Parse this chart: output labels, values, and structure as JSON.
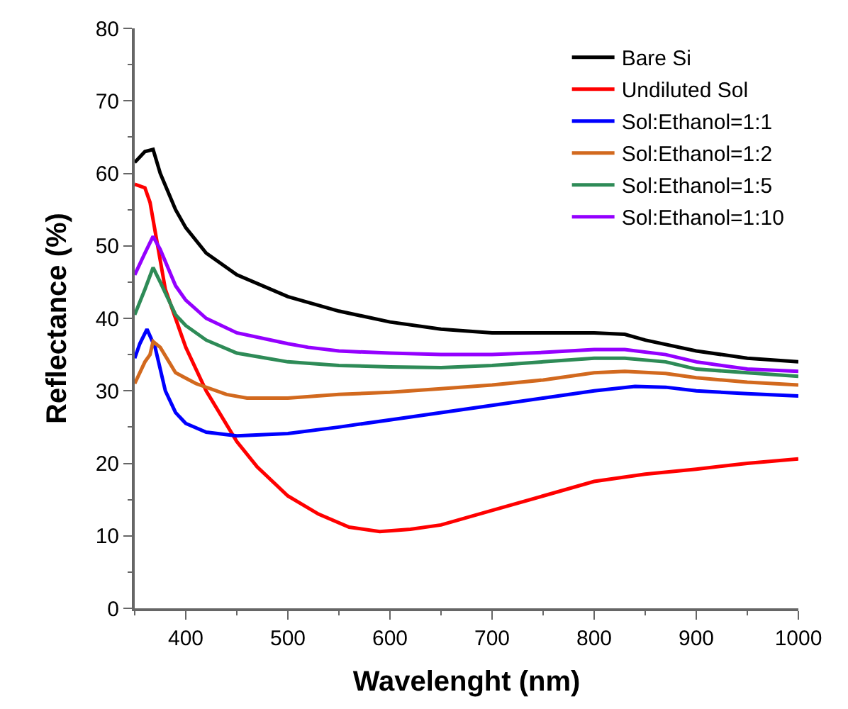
{
  "chart_data": {
    "type": "line",
    "xlabel": "Wavelenght (nm)",
    "ylabel": "Reflectance (%)",
    "xlim": [
      350,
      1000
    ],
    "xticks": [
      400,
      500,
      600,
      700,
      800,
      900,
      1000
    ],
    "ylim": [
      0,
      80
    ],
    "yticks": [
      0,
      10,
      20,
      30,
      40,
      50,
      60,
      70,
      80
    ],
    "legend": "top right",
    "marker": "none",
    "line_style": "solid",
    "series": [
      {
        "name": "Bare Si",
        "color": "#000000",
        "x": [
          350,
          360,
          368,
          375,
          390,
          400,
          420,
          450,
          500,
          550,
          600,
          650,
          700,
          750,
          800,
          830,
          850,
          900,
          950,
          1000
        ],
        "values": [
          61.5,
          63,
          63.3,
          60,
          55,
          52.5,
          49,
          46,
          43,
          41,
          39.5,
          38.5,
          38,
          38,
          38,
          37.8,
          37,
          35.5,
          34.5,
          34
        ]
      },
      {
        "name": "Undiluted Sol",
        "color": "#ff0000",
        "x": [
          350,
          360,
          365,
          370,
          380,
          400,
          420,
          450,
          470,
          500,
          530,
          560,
          590,
          620,
          650,
          700,
          750,
          800,
          850,
          900,
          950,
          1000
        ],
        "values": [
          58.5,
          58,
          56,
          52,
          44,
          36,
          30,
          23,
          19.5,
          15.5,
          13,
          11.2,
          10.6,
          10.9,
          11.5,
          13.5,
          15.5,
          17.5,
          18.5,
          19.2,
          20,
          20.6
        ]
      },
      {
        "name": "Sol:Ethanol=1:1",
        "color": "#0000ff",
        "x": [
          350,
          355,
          362,
          370,
          380,
          390,
          400,
          420,
          450,
          500,
          550,
          600,
          650,
          700,
          750,
          800,
          840,
          870,
          900,
          950,
          1000
        ],
        "values": [
          34.5,
          36.5,
          38.5,
          36,
          30,
          27,
          25.5,
          24.3,
          23.8,
          24.1,
          25,
          26,
          27,
          28,
          29,
          30,
          30.6,
          30.5,
          30,
          29.6,
          29.3
        ]
      },
      {
        "name": "Sol:Ethanol=1:2",
        "color": "#d2691e",
        "x": [
          350,
          360,
          365,
          368,
          375,
          390,
          410,
          440,
          460,
          500,
          550,
          600,
          650,
          700,
          750,
          800,
          830,
          870,
          900,
          950,
          1000
        ],
        "values": [
          31,
          34,
          35,
          36.8,
          36,
          32.5,
          31,
          29.5,
          29,
          29,
          29.5,
          29.8,
          30.3,
          30.8,
          31.5,
          32.5,
          32.7,
          32.4,
          31.8,
          31.2,
          30.8
        ]
      },
      {
        "name": "Sol:Ethanol=1:5",
        "color": "#2e8b57",
        "x": [
          350,
          360,
          368,
          375,
          390,
          400,
          420,
          450,
          500,
          550,
          600,
          650,
          700,
          750,
          800,
          830,
          870,
          900,
          950,
          1000
        ],
        "values": [
          40.5,
          44,
          47,
          45,
          40.5,
          39,
          37,
          35.2,
          34,
          33.5,
          33.3,
          33.2,
          33.5,
          34,
          34.5,
          34.5,
          34,
          33,
          32.5,
          32
        ]
      },
      {
        "name": "Sol:Ethanol=1:10",
        "color": "#9400ff",
        "x": [
          350,
          360,
          368,
          375,
          390,
          400,
          420,
          450,
          500,
          520,
          550,
          600,
          650,
          700,
          750,
          800,
          830,
          870,
          900,
          950,
          1000
        ],
        "values": [
          46,
          49,
          51.3,
          49.5,
          44.5,
          42.5,
          40,
          38,
          36.5,
          36,
          35.5,
          35.2,
          35,
          35,
          35.3,
          35.7,
          35.7,
          35,
          34,
          33,
          32.7
        ]
      }
    ]
  }
}
